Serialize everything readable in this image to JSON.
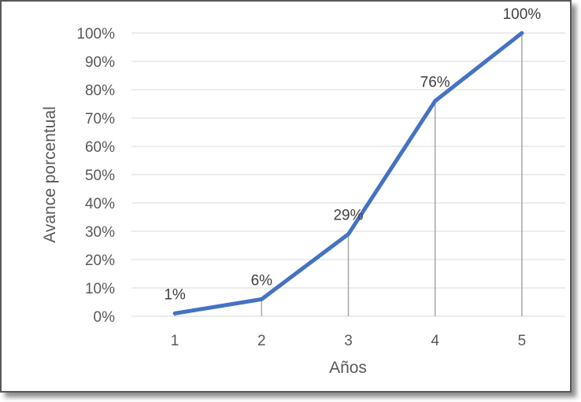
{
  "chart_data": {
    "type": "line",
    "x": [
      1,
      2,
      3,
      4,
      5
    ],
    "categories": [
      "1",
      "2",
      "3",
      "4",
      "5"
    ],
    "values": [
      1,
      6,
      29,
      76,
      100
    ],
    "data_labels": [
      "1%",
      "6%",
      "29%",
      "76%",
      "100%"
    ],
    "xlabel": "Años",
    "ylabel": "Avance porcentual",
    "ylim": [
      0,
      100
    ],
    "y_tick_labels": [
      "0%",
      "10%",
      "20%",
      "30%",
      "40%",
      "50%",
      "60%",
      "70%",
      "80%",
      "90%",
      "100%"
    ],
    "grid": true,
    "drop_lines": true,
    "legend": "none",
    "line_color": "#4472C4",
    "grid_color": "#D9D9D9"
  }
}
